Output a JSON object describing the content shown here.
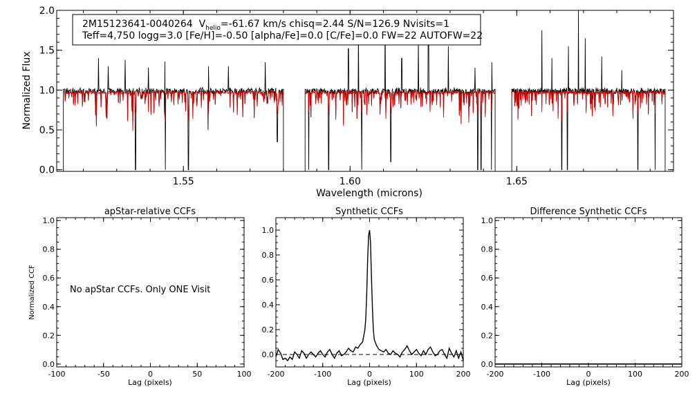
{
  "chart_data": [
    {
      "type": "line",
      "panel": "spectrum",
      "title": "",
      "xlabel": "Wavelength (microns)",
      "ylabel": "Normalized Flux",
      "xlim": [
        1.512,
        1.697
      ],
      "ylim": [
        -0.02,
        2.0
      ],
      "x_ticks": [
        1.55,
        1.6,
        1.65
      ],
      "x_tick_labels": [
        "1.55",
        "1.60",
        "1.65"
      ],
      "y_ticks": [
        0.0,
        0.5,
        1.0,
        1.5,
        2.0
      ],
      "y_tick_labels": [
        "0.0",
        "0.5",
        "1.0",
        "1.5",
        "2.0"
      ],
      "chip_ranges": [
        [
          1.514,
          1.58
        ],
        [
          1.5865,
          1.6435
        ],
        [
          1.6485,
          1.6945
        ]
      ],
      "continuum_level": 0.97,
      "series_colors": {
        "observed": "#000000",
        "model": "#d00000"
      },
      "info_box": {
        "line1": {
          "star_id": "2M15123641-0040264",
          "v_symbol": "V",
          "v_subscript": "helio",
          "rest": "=-61.67 km/s  chisq=2.44  S/N=126.9  Nvisits=1"
        },
        "line2": "Teff=4,750 logg=3.0 [Fe/H]=-0.50 [alpha/Fe]=0.0 [C/Fe]=0.0 FW=22 AUTOFW=22"
      },
      "absorption_features": [
        [
          1.5356,
          0.0
        ],
        [
          1.5445,
          0.0
        ],
        [
          1.5515,
          0.0
        ],
        [
          1.5575,
          0.5
        ],
        [
          1.5782,
          0.35
        ],
        [
          1.5876,
          0.0
        ],
        [
          1.5936,
          0.0
        ],
        [
          1.6035,
          0.0
        ],
        [
          1.6122,
          0.1
        ],
        [
          1.6383,
          0.0
        ],
        [
          1.6393,
          0.0
        ],
        [
          1.6425,
          0.0
        ],
        [
          1.6477,
          0.0
        ],
        [
          1.6635,
          0.0
        ],
        [
          1.6652,
          0.0
        ],
        [
          1.6863,
          0.0
        ],
        [
          1.6915,
          0.0
        ]
      ],
      "emission_features": [
        [
          1.5245,
          1.4
        ],
        [
          1.5275,
          1.3
        ],
        [
          1.5325,
          1.38
        ],
        [
          1.5395,
          1.28
        ],
        [
          1.5445,
          1.36
        ],
        [
          1.5575,
          1.3
        ],
        [
          1.5635,
          1.3
        ],
        [
          1.5745,
          1.35
        ],
        [
          1.5995,
          1.52
        ],
        [
          1.6025,
          1.78
        ],
        [
          1.6105,
          1.95
        ],
        [
          1.6155,
          1.4
        ],
        [
          1.6205,
          1.65
        ],
        [
          1.6235,
          1.95
        ],
        [
          1.6295,
          1.55
        ],
        [
          1.6375,
          1.28
        ],
        [
          1.6425,
          1.35
        ],
        [
          1.6575,
          1.75
        ],
        [
          1.6605,
          1.4
        ],
        [
          1.6655,
          1.55
        ],
        [
          1.6685,
          2.0
        ],
        [
          1.6705,
          1.65
        ],
        [
          1.6755,
          1.42
        ],
        [
          1.6815,
          1.25
        ]
      ]
    },
    {
      "type": "text",
      "panel": "apstar-ccf",
      "title": "apStar-relative CCFs",
      "xlabel": "Lag (pixels)",
      "ylabel": "Normalized CCF",
      "xlim": [
        -100,
        100
      ],
      "ylim": [
        -0.02,
        1.02
      ],
      "x_ticks": [
        -100,
        -50,
        0,
        50,
        100
      ],
      "x_tick_labels": [
        "-100",
        "-50",
        "0",
        "50",
        "100"
      ],
      "y_ticks": [
        0.0,
        0.2,
        0.4,
        0.6,
        0.8,
        1.0
      ],
      "y_tick_labels": [
        "0.0",
        "0.2",
        "0.4",
        "0.6",
        "0.8",
        "1.0"
      ],
      "message": "No apStar CCFs.  Only ONE Visit"
    },
    {
      "type": "line",
      "panel": "synthetic-ccf",
      "title": "Synthetic CCFs",
      "xlabel": "Lag (pixels)",
      "ylabel": "",
      "xlim": [
        -200,
        200
      ],
      "ylim": [
        -0.1,
        1.1
      ],
      "x_ticks": [
        -200,
        -100,
        0,
        100,
        200
      ],
      "x_tick_labels": [
        "-200",
        "-100",
        "0",
        "100",
        "200"
      ],
      "y_ticks": [
        0.0,
        0.2,
        0.4,
        0.6,
        0.8,
        1.0
      ],
      "y_tick_labels": [
        "0.0",
        "0.2",
        "0.4",
        "0.6",
        "0.8",
        "1.0"
      ],
      "reference_line_y": 0.0,
      "x": [
        -200,
        -195,
        -190,
        -185,
        -180,
        -175,
        -170,
        -165,
        -160,
        -155,
        -150,
        -145,
        -140,
        -135,
        -130,
        -125,
        -120,
        -115,
        -110,
        -105,
        -100,
        -95,
        -90,
        -85,
        -80,
        -75,
        -70,
        -65,
        -60,
        -55,
        -50,
        -45,
        -40,
        -35,
        -30,
        -25,
        -20,
        -15,
        -10,
        -8,
        -6,
        -4,
        -2,
        0,
        2,
        4,
        6,
        8,
        10,
        15,
        20,
        25,
        30,
        35,
        40,
        45,
        50,
        55,
        60,
        65,
        70,
        75,
        80,
        85,
        90,
        95,
        100,
        105,
        110,
        115,
        120,
        125,
        130,
        135,
        140,
        145,
        150,
        155,
        160,
        165,
        170,
        175,
        180,
        185,
        190,
        195,
        200
      ],
      "y": [
        -0.02,
        0.04,
        0.01,
        -0.04,
        -0.03,
        -0.05,
        -0.02,
        -0.04,
        0.02,
        0.0,
        -0.03,
        0.03,
        0.01,
        -0.03,
        0.0,
        0.02,
        0.0,
        -0.02,
        0.01,
        0.03,
        0.0,
        -0.02,
        0.02,
        0.04,
        0.0,
        -0.03,
        0.01,
        0.03,
        -0.01,
        0.0,
        0.02,
        0.05,
        0.03,
        0.02,
        0.06,
        0.05,
        0.08,
        0.1,
        0.2,
        0.3,
        0.5,
        0.78,
        0.96,
        1.0,
        0.9,
        0.62,
        0.38,
        0.2,
        0.12,
        0.07,
        0.04,
        0.03,
        0.02,
        0.04,
        0.01,
        0.0,
        0.03,
        0.01,
        0.0,
        -0.02,
        0.02,
        0.04,
        0.07,
        0.03,
        0.0,
        0.02,
        0.04,
        0.01,
        -0.01,
        0.03,
        0.0,
        0.04,
        0.06,
        0.02,
        -0.01,
        0.0,
        0.03,
        0.04,
        0.0,
        -0.03,
        0.05,
        0.01,
        -0.02,
        0.03,
        -0.03,
        0.02,
        -0.05
      ]
    },
    {
      "type": "line",
      "panel": "difference-ccf",
      "title": "Difference Synthetic CCFs",
      "xlabel": "Lag (pixels)",
      "ylabel": "",
      "xlim": [
        -200,
        200
      ],
      "ylim": [
        -0.02,
        1.02
      ],
      "x_ticks": [
        -200,
        -100,
        0,
        100,
        200
      ],
      "x_tick_labels": [
        "-200",
        "-100",
        "0",
        "100",
        "200"
      ],
      "y_ticks": [
        0.0,
        0.2,
        0.4,
        0.6,
        0.8,
        1.0
      ],
      "y_tick_labels": [
        "0.0",
        "0.2",
        "0.4",
        "0.6",
        "0.8",
        "1.0"
      ],
      "baseline_y": 0.0
    }
  ]
}
